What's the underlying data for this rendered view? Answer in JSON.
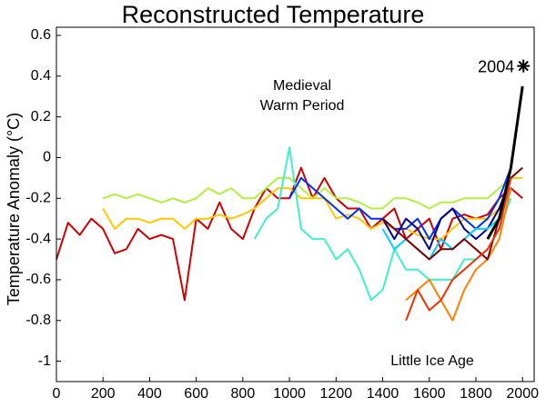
{
  "chart_data": {
    "type": "line",
    "title": "Reconstructed Temperature",
    "y_label": "Temperature Anomaly (°C)",
    "annotations": [
      [
        "Medieval",
        "Warm Period"
      ],
      [
        "Little Ice Age"
      ]
    ],
    "highlight": {
      "label": "2004",
      "x": 2004,
      "y": 0.45
    },
    "xlim": [
      0,
      2050
    ],
    "ylim": [
      -1.1,
      0.64
    ],
    "xticks": [
      0,
      200,
      400,
      600,
      800,
      1000,
      1200,
      1400,
      1600,
      1800,
      2000
    ],
    "yticks": [
      0.6,
      0.4,
      0.2,
      0,
      -0.2,
      -0.4,
      -0.6,
      -0.8,
      -1
    ],
    "grid": false,
    "x": [
      0,
      50,
      100,
      150,
      200,
      250,
      300,
      350,
      400,
      450,
      500,
      550,
      600,
      650,
      700,
      750,
      800,
      850,
      900,
      950,
      1000,
      1050,
      1100,
      1150,
      1200,
      1250,
      1300,
      1350,
      1400,
      1450,
      1500,
      1550,
      1600,
      1650,
      1700,
      1750,
      1800,
      1850,
      1900,
      1950,
      2000
    ],
    "series": [
      {
        "color": "#d00000",
        "values": [
          -0.5,
          -0.32,
          -0.38,
          -0.3,
          -0.35,
          -0.47,
          -0.45,
          -0.35,
          -0.4,
          -0.38,
          -0.4,
          -0.7,
          -0.3,
          -0.35,
          -0.22,
          -0.35,
          -0.4,
          -0.25,
          -0.15,
          -0.2,
          -0.2,
          -0.05,
          -0.2,
          -0.1,
          -0.2,
          -0.25,
          -0.25,
          -0.35,
          -0.3,
          -0.25,
          -0.4,
          -0.35,
          -0.3,
          -0.45,
          -0.3,
          -0.28,
          -0.3,
          -0.28,
          -0.2,
          -0.15,
          -0.2
        ]
      },
      {
        "color": "#b0f040",
        "values": [
          null,
          null,
          null,
          null,
          -0.2,
          -0.18,
          -0.2,
          -0.18,
          -0.2,
          -0.22,
          -0.2,
          -0.22,
          -0.2,
          -0.15,
          -0.18,
          -0.15,
          -0.2,
          -0.2,
          -0.15,
          -0.1,
          -0.1,
          -0.15,
          -0.2,
          -0.15,
          -0.2,
          -0.2,
          -0.22,
          -0.25,
          -0.25,
          -0.2,
          -0.2,
          -0.22,
          -0.25,
          -0.22,
          -0.22,
          -0.2,
          -0.2,
          -0.2,
          -0.15,
          -0.1,
          -0.05
        ]
      },
      {
        "color": "#ffc800",
        "values": [
          null,
          null,
          null,
          null,
          -0.25,
          -0.35,
          -0.3,
          -0.3,
          -0.32,
          -0.3,
          -0.3,
          -0.35,
          -0.3,
          -0.3,
          -0.28,
          -0.3,
          -0.28,
          -0.25,
          -0.2,
          -0.15,
          -0.15,
          -0.2,
          -0.2,
          -0.2,
          -0.3,
          -0.28,
          -0.3,
          -0.35,
          -0.32,
          -0.35,
          -0.35,
          -0.38,
          -0.4,
          -0.4,
          -0.35,
          -0.3,
          -0.3,
          -0.3,
          -0.25,
          -0.1,
          -0.1
        ]
      },
      {
        "color": "#40f0c8",
        "values": [
          null,
          null,
          null,
          null,
          null,
          null,
          null,
          null,
          null,
          null,
          null,
          null,
          null,
          null,
          null,
          null,
          null,
          -0.4,
          -0.3,
          -0.25,
          0.05,
          -0.35,
          -0.4,
          -0.4,
          -0.5,
          -0.45,
          -0.55,
          -0.7,
          -0.65,
          -0.45,
          -0.55,
          -0.55,
          -0.6,
          -0.6,
          -0.6,
          -0.5,
          -0.5,
          -0.45,
          -0.35,
          -0.2,
          null
        ]
      },
      {
        "color": "#0030ff",
        "values": [
          null,
          null,
          null,
          null,
          null,
          null,
          null,
          null,
          null,
          null,
          null,
          null,
          null,
          null,
          null,
          null,
          null,
          null,
          null,
          null,
          -0.2,
          -0.1,
          -0.15,
          -0.2,
          -0.25,
          -0.3,
          -0.25,
          -0.3,
          -0.3,
          -0.35,
          -0.35,
          -0.3,
          -0.4,
          -0.3,
          -0.25,
          -0.3,
          -0.35,
          -0.3,
          -0.2,
          -0.05,
          null
        ]
      },
      {
        "color": "#000090",
        "values": [
          null,
          null,
          null,
          null,
          null,
          null,
          null,
          null,
          null,
          null,
          null,
          null,
          null,
          null,
          null,
          null,
          null,
          null,
          null,
          null,
          null,
          null,
          null,
          null,
          null,
          null,
          null,
          null,
          -0.3,
          -0.4,
          -0.3,
          -0.35,
          -0.45,
          -0.3,
          -0.25,
          -0.35,
          -0.4,
          -0.35,
          -0.25,
          -0.1,
          null
        ]
      },
      {
        "color": "#00d0ff",
        "values": [
          null,
          null,
          null,
          null,
          null,
          null,
          null,
          null,
          null,
          null,
          null,
          null,
          null,
          null,
          null,
          null,
          null,
          null,
          null,
          null,
          null,
          null,
          null,
          null,
          null,
          null,
          null,
          null,
          -0.35,
          -0.45,
          -0.4,
          -0.45,
          -0.5,
          -0.4,
          -0.45,
          -0.4,
          -0.35,
          -0.35,
          -0.3,
          -0.15,
          null
        ]
      },
      {
        "color": "#ff8000",
        "values": [
          null,
          null,
          null,
          null,
          null,
          null,
          null,
          null,
          null,
          null,
          null,
          null,
          null,
          null,
          null,
          null,
          null,
          null,
          null,
          null,
          null,
          null,
          null,
          null,
          null,
          null,
          null,
          null,
          null,
          null,
          -0.7,
          -0.65,
          -0.6,
          -0.7,
          -0.8,
          -0.65,
          -0.55,
          -0.5,
          -0.4,
          -0.15,
          null
        ]
      },
      {
        "color": "#800000",
        "values": [
          null,
          null,
          null,
          null,
          null,
          null,
          null,
          null,
          null,
          null,
          null,
          null,
          null,
          null,
          null,
          null,
          null,
          null,
          null,
          null,
          null,
          null,
          null,
          null,
          null,
          null,
          null,
          null,
          -0.3,
          -0.35,
          -0.4,
          -0.45,
          -0.5,
          -0.45,
          -0.45,
          -0.4,
          -0.45,
          -0.5,
          -0.3,
          -0.1,
          -0.05
        ]
      },
      {
        "color": "#f03000",
        "values": [
          null,
          null,
          null,
          null,
          null,
          null,
          null,
          null,
          null,
          null,
          null,
          null,
          null,
          null,
          null,
          null,
          null,
          null,
          null,
          null,
          null,
          null,
          null,
          null,
          null,
          null,
          null,
          null,
          null,
          null,
          -0.8,
          -0.65,
          -0.75,
          -0.7,
          -0.6,
          -0.55,
          -0.5,
          -0.45,
          -0.35,
          -0.1,
          null
        ]
      },
      {
        "color": "#000000",
        "values": [
          null,
          null,
          null,
          null,
          null,
          null,
          null,
          null,
          null,
          null,
          null,
          null,
          null,
          null,
          null,
          null,
          null,
          null,
          null,
          null,
          null,
          null,
          null,
          null,
          null,
          null,
          null,
          null,
          null,
          null,
          null,
          null,
          null,
          null,
          null,
          null,
          null,
          -0.4,
          -0.3,
          -0.05,
          0.35
        ]
      }
    ]
  }
}
